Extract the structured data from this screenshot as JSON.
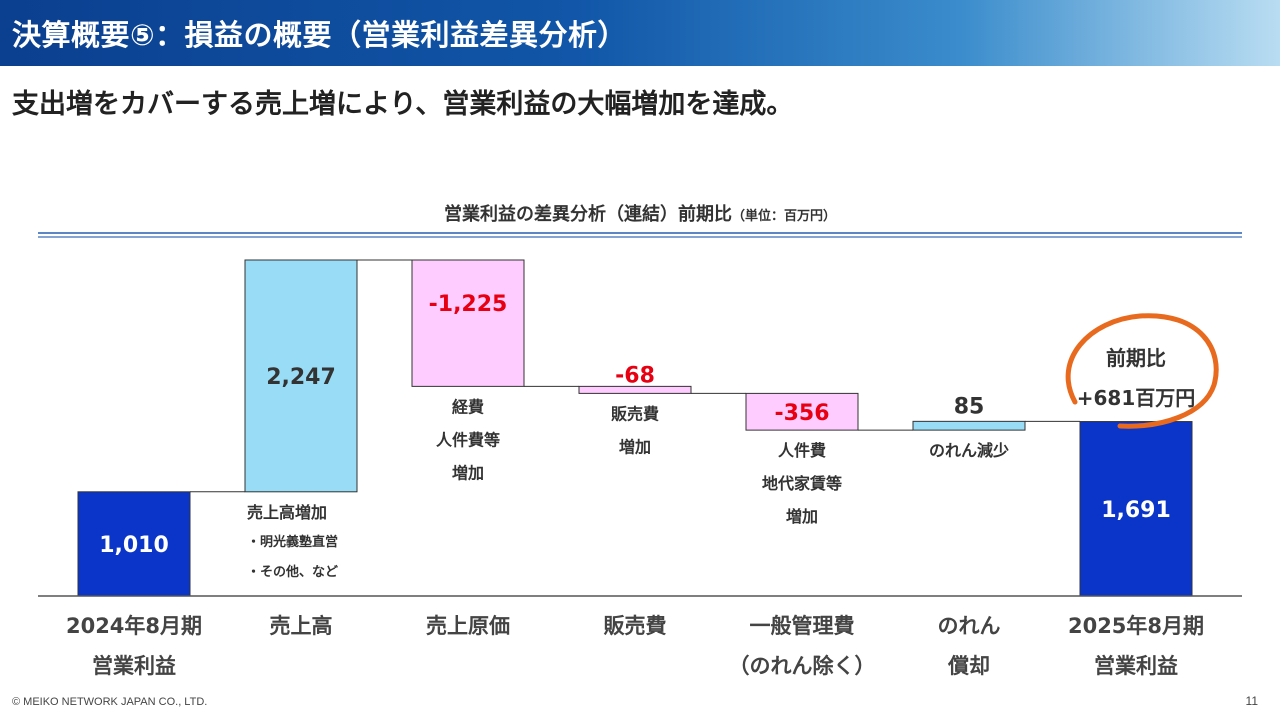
{
  "header": {
    "title": "決算概要⑤：損益の概要（営業利益差異分析）"
  },
  "subtitle": "支出増をカバーする売上増により、営業利益の大幅増加を達成。",
  "chart_title": {
    "main": "営業利益の差異分析（連結）前期比",
    "unit": "（単位：百万円）"
  },
  "chart_data": {
    "type": "bar",
    "subtype": "waterfall",
    "unit": "百万円",
    "categories": [
      [
        "2024年8月期",
        "営業利益"
      ],
      [
        "売上高"
      ],
      [
        "売上原価"
      ],
      [
        "販売費"
      ],
      [
        "一般管理費",
        "（のれん除く）"
      ],
      [
        "のれん",
        "償却"
      ],
      [
        "2025年8月期",
        "営業利益"
      ]
    ],
    "values": [
      1010,
      2247,
      -1225,
      -68,
      -356,
      85,
      1691
    ],
    "value_labels": [
      "1,010",
      "2,247",
      "-1,225",
      "-68",
      "-356",
      "85",
      "1,691"
    ],
    "kinds": [
      "total",
      "increase",
      "decrease",
      "decrease",
      "decrease",
      "increase",
      "total"
    ],
    "notes": [
      [],
      [
        "売上高増加",
        "・明光義塾直営",
        "・その他、など"
      ],
      [
        "経費",
        "人件費等",
        "増加"
      ],
      [
        "販売費",
        "増加"
      ],
      [
        "人件費",
        "地代家賃等",
        "増加"
      ],
      [
        "のれん減少"
      ],
      []
    ],
    "callout": {
      "lines": [
        "前期比",
        "+681百万円"
      ],
      "value": 681
    },
    "colors": {
      "total": "#0a35c8",
      "increase": "#99dcf5",
      "decrease": "#ffccff",
      "negative_label": "#e60012",
      "positive_label": "#333333",
      "total_label": "#ffffff",
      "callout_ring": "#e86a1e"
    }
  },
  "footer": {
    "copyright": "© MEIKO NETWORK JAPAN CO., LTD.",
    "page": "11"
  }
}
